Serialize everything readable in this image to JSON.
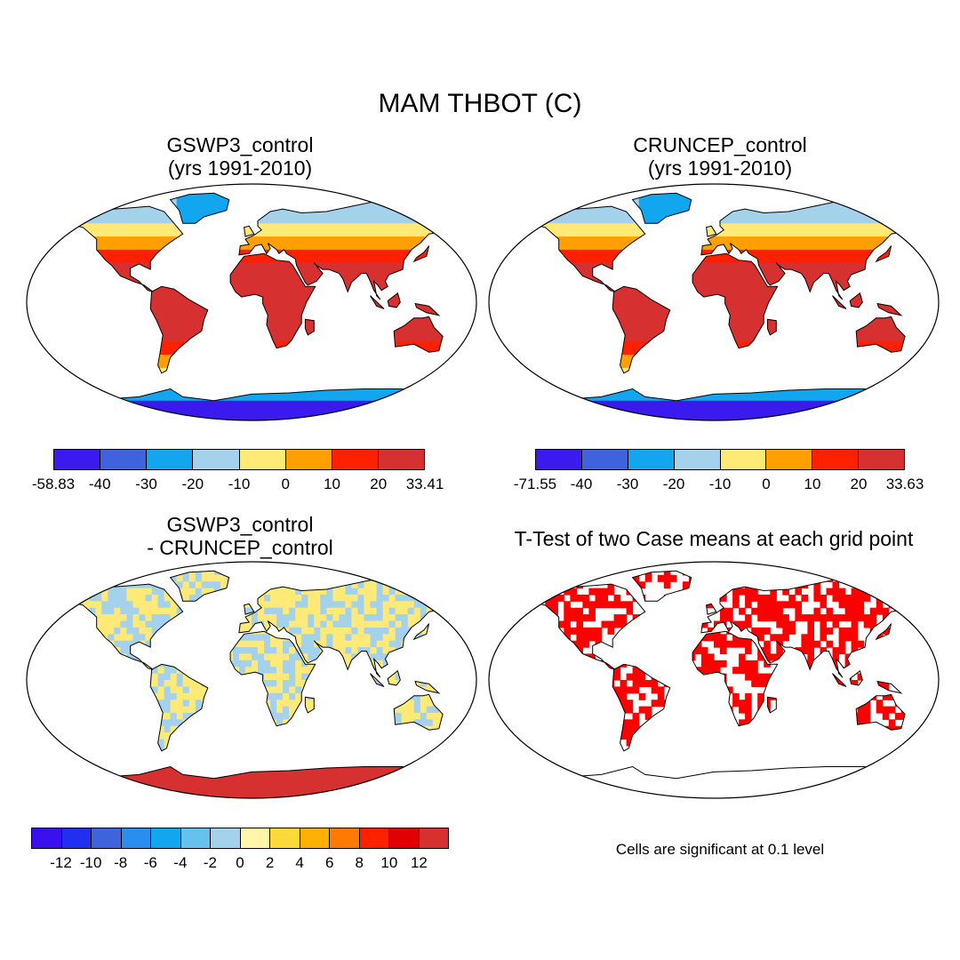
{
  "title": "MAM THBOT (C)",
  "panels": [
    {
      "id": "gswp3",
      "title_line1": "GSWP3_control",
      "title_line2": "(yrs 1991-2010)",
      "colorbar": {
        "colors": [
          "#3a1aee",
          "#3f62dd",
          "#12a6ee",
          "#a4d1ec",
          "#ffea77",
          "#ffa000",
          "#ff2000",
          "#d63030"
        ],
        "labels": [
          "-58.83",
          "-40",
          "-30",
          "-20",
          "-10",
          "0",
          "10",
          "20",
          "33.41"
        ]
      }
    },
    {
      "id": "cruncep",
      "title_line1": "CRUNCEP_control",
      "title_line2": "(yrs 1991-2010)",
      "colorbar": {
        "colors": [
          "#3a1aee",
          "#3f62dd",
          "#12a6ee",
          "#a4d1ec",
          "#ffea77",
          "#ffa000",
          "#ff2000",
          "#d63030"
        ],
        "labels": [
          "-71.55",
          "-40",
          "-30",
          "-20",
          "-10",
          "0",
          "10",
          "20",
          "33.63"
        ]
      }
    },
    {
      "id": "difference",
      "title_line1": "GSWP3_control",
      "title_line2": "- CRUNCEP_control",
      "colorbar": {
        "colors": [
          "#3a10ee",
          "#2030ee",
          "#3f62dd",
          "#2a8eee",
          "#12a6ee",
          "#68c0ec",
          "#a4d1ec",
          "#fff6a8",
          "#ffd83a",
          "#ffb000",
          "#ff7a00",
          "#ff2000",
          "#e00000",
          "#d63030"
        ],
        "labels": [
          "-12",
          "-10",
          "-8",
          "-6",
          "-4",
          "-2",
          "0",
          "2",
          "4",
          "6",
          "8",
          "10",
          "12"
        ]
      }
    },
    {
      "id": "ttest",
      "title_line1": "T-Test of two Case means at each grid point",
      "note": "Cells are significant at 0.1 level"
    }
  ],
  "map_colors": {
    "land_hot": "#d63030",
    "land_warm": "#ff2000",
    "land_mild": "#ffa000",
    "land_cool": "#ffea77",
    "land_cold": "#a4d1ec",
    "ice_blue": "#12a6ee",
    "ice_deep": "#3a1aee",
    "diff_pos": "#ffea77",
    "diff_neg": "#a4d1ec",
    "diff_hot": "#d63030",
    "significant": "#ff0000"
  }
}
